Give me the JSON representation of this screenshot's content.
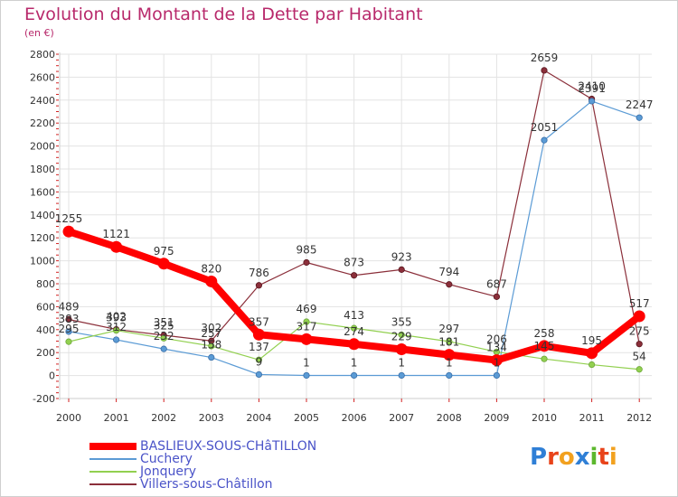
{
  "header": {
    "title": "Evolution du Montant de la Dette par Habitant",
    "subtitle": "(en €)"
  },
  "chart_data": {
    "type": "line",
    "title": "Evolution du Montant de la Dette par Habitant",
    "subtitle": "(en €)",
    "xlabel": "",
    "ylabel": "",
    "x": [
      "2000",
      "2001",
      "2002",
      "2003",
      "2004",
      "2005",
      "2006",
      "2007",
      "2008",
      "2009",
      "2010",
      "2011",
      "2012"
    ],
    "ylim": [
      -200,
      2800
    ],
    "yticks": [
      -200,
      0,
      200,
      400,
      600,
      800,
      1000,
      1200,
      1400,
      1600,
      1800,
      2000,
      2200,
      2400,
      2600,
      2800
    ],
    "grid": true,
    "legend_position": "bottom-left",
    "series": [
      {
        "name": "BASLIEUX-SOUS-CHâTILLON",
        "color": "#ff0000",
        "width": 8,
        "values": [
          1255,
          1121,
          975,
          820,
          357,
          317,
          274,
          229,
          181,
          134,
          258,
          195,
          517
        ]
      },
      {
        "name": "Cuchery",
        "color": "#5b9bd5",
        "width": 1.2,
        "values": [
          383,
          312,
          232,
          158,
          9,
          1,
          1,
          1,
          1,
          1,
          2051,
          2391,
          2247
        ]
      },
      {
        "name": "Jonquery",
        "color": "#92d050",
        "width": 1.2,
        "values": [
          295,
          393,
          325,
          257,
          137,
          469,
          413,
          355,
          297,
          206,
          145,
          95,
          54
        ]
      },
      {
        "name": "Villers-sous-Châtillon",
        "color": "#8b2f3a",
        "width": 1.2,
        "values": [
          489,
          402,
          351,
          302,
          786,
          985,
          873,
          923,
          794,
          687,
          2659,
          2410,
          275
        ]
      }
    ],
    "data_labels": [
      {
        "series": 0,
        "labels": [
          "1255",
          "1121",
          "975",
          "820",
          "357",
          "317",
          "274",
          "229",
          "181",
          "134",
          "258",
          "195",
          "517"
        ]
      },
      {
        "series": 1,
        "labels": [
          "383",
          "312",
          "232",
          "158",
          "9",
          "1",
          "1",
          "1",
          "1",
          "1",
          "2051",
          "2391",
          "2247"
        ]
      },
      {
        "series": 2,
        "labels": [
          "295",
          "393",
          "325",
          "257",
          "137",
          "469",
          "413",
          "355",
          "297",
          "206",
          "145",
          "",
          "54"
        ]
      },
      {
        "series": 3,
        "labels": [
          "489",
          "402",
          "351",
          "302",
          "786",
          "985",
          "873",
          "923",
          "794",
          "687",
          "2659",
          "2410",
          "275"
        ]
      }
    ]
  },
  "logo": {
    "letters": [
      "P",
      "r",
      "o",
      "x",
      "i",
      "t",
      "i"
    ],
    "colors": [
      "#2f7fd6",
      "#e8431a",
      "#f2a11f",
      "#2f7fd6",
      "#5cb82e",
      "#e8431a",
      "#f2a11f"
    ]
  }
}
